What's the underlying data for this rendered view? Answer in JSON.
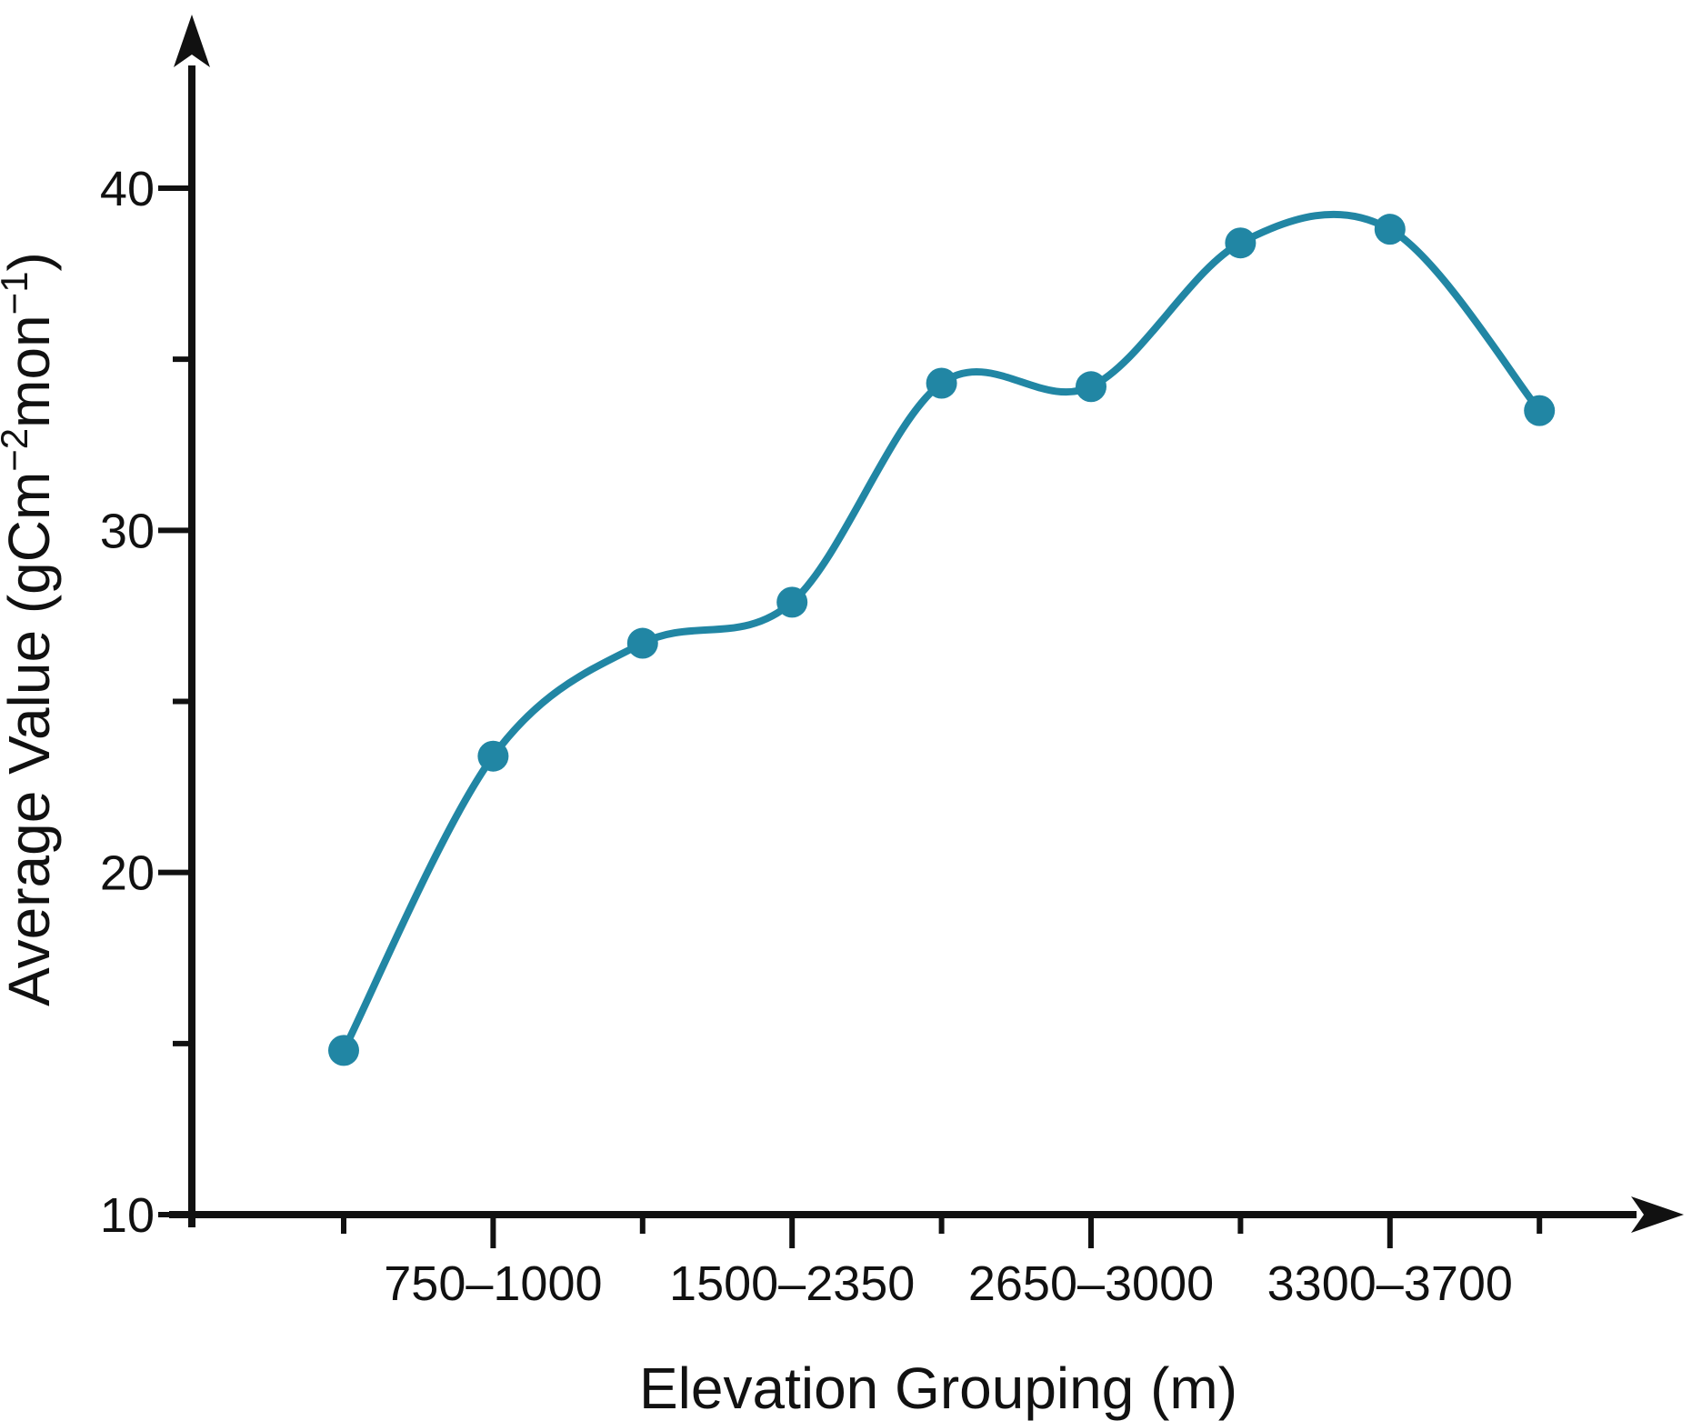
{
  "chart_data": {
    "type": "line",
    "title": "",
    "xlabel": "Elevation Grouping (m)",
    "ylabel": "Average Value (gCm−2mon−1)",
    "ylabel_parts": [
      {
        "t": "Average Value (gCm",
        "sup": false
      },
      {
        "t": "−2",
        "sup": true
      },
      {
        "t": "mon",
        "sup": false
      },
      {
        "t": "−1",
        "sup": true
      },
      {
        "t": ")",
        "sup": false
      }
    ],
    "x_categories": [
      "750–1000",
      "1500–2350",
      "2650–3000",
      "3300–3700"
    ],
    "x_points_count": 9,
    "x_labeled_point_indices": [
      2,
      4,
      6,
      8
    ],
    "x_minor_tick_point_indices": [
      1,
      3,
      5,
      7,
      9
    ],
    "series": [
      {
        "name": "Average Value",
        "x_index": [
          1,
          2,
          3,
          4,
          5,
          6,
          7,
          8,
          9
        ],
        "values": [
          14.8,
          23.4,
          26.7,
          27.9,
          34.3,
          34.2,
          38.4,
          38.8,
          33.5
        ]
      }
    ],
    "y_ticks": [
      10,
      20,
      30,
      40
    ],
    "y_minor_ticks": [
      15,
      25,
      35
    ],
    "ylim": [
      10,
      44
    ],
    "smooth": true,
    "grid": false,
    "legend": "none",
    "line_color": "#2186a4",
    "marker_color": "#2186a4",
    "axis_color": "#111111",
    "background": "#ffffff"
  }
}
